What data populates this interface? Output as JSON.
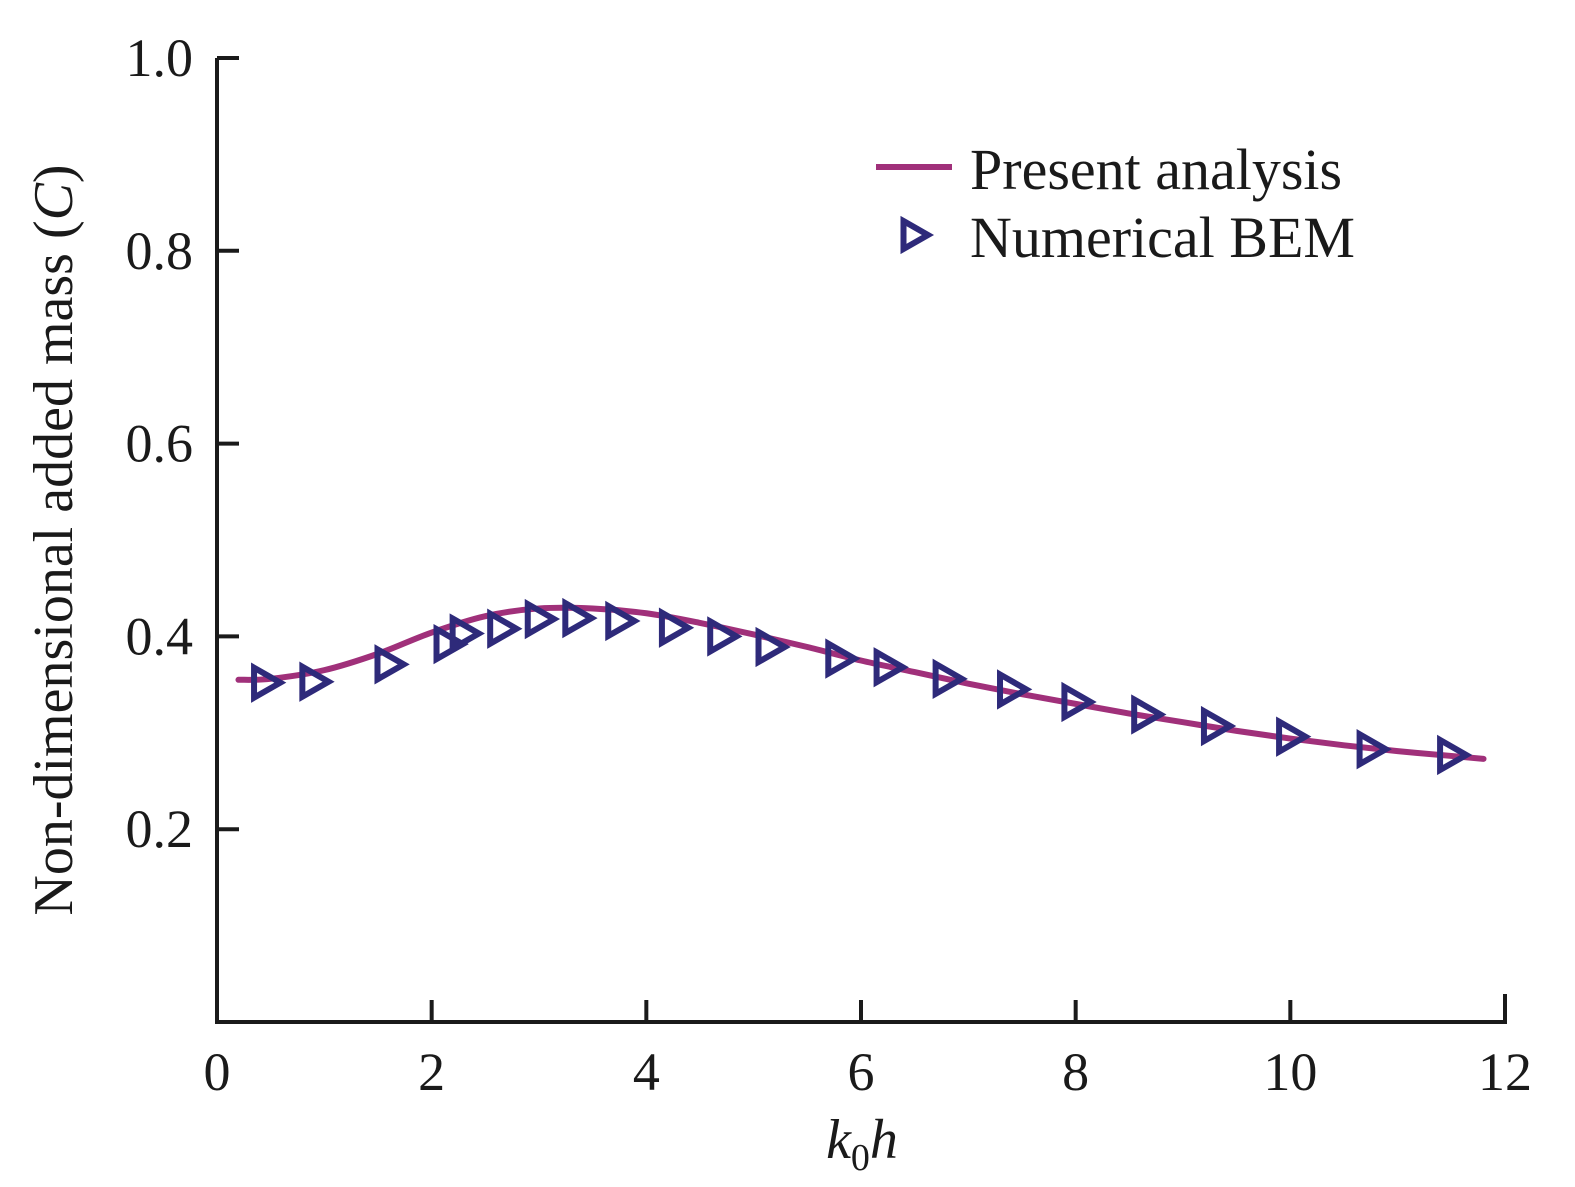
{
  "chart_data": {
    "type": "line",
    "xlabel": {
      "main": "k",
      "sub": "0",
      "tail": "h"
    },
    "ylabel": "Non-dimensional added mass (C)",
    "ylabel_parts": {
      "pre": "Non-dimensional added mass (",
      "var": "C",
      "post": ")"
    },
    "xlim": [
      0,
      12
    ],
    "ylim": [
      0,
      1.0
    ],
    "xticks": [
      0,
      2,
      4,
      6,
      8,
      10,
      12
    ],
    "xtick_labels": [
      "0",
      "2",
      "4",
      "6",
      "8",
      "10",
      "12"
    ],
    "yticks": [
      0.2,
      0.4,
      0.6,
      0.8,
      1.0
    ],
    "ytick_labels": [
      "0.2",
      "0.4",
      "0.6",
      "0.8",
      "1.0"
    ],
    "grid": false,
    "legend_position": "top-right",
    "series": [
      {
        "name": "Present analysis",
        "style": "line",
        "color": "#a0307a",
        "x": [
          0.2,
          0.5,
          1.0,
          1.5,
          2.0,
          2.5,
          3.0,
          3.5,
          4.0,
          4.5,
          5.0,
          5.5,
          6.0,
          6.5,
          7.0,
          7.5,
          8.0,
          8.5,
          9.0,
          9.5,
          10.0,
          10.5,
          11.0,
          11.5,
          11.8
        ],
        "y": [
          0.355,
          0.356,
          0.365,
          0.382,
          0.404,
          0.421,
          0.429,
          0.429,
          0.424,
          0.414,
          0.402,
          0.389,
          0.375,
          0.363,
          0.351,
          0.34,
          0.33,
          0.32,
          0.311,
          0.302,
          0.294,
          0.287,
          0.281,
          0.276,
          0.273
        ]
      },
      {
        "name": "Numerical BEM",
        "style": "marker",
        "marker": "triangle-right",
        "color": "#2e2a7a",
        "x": [
          0.45,
          0.9,
          1.6,
          2.15,
          2.3,
          2.65,
          3.0,
          3.35,
          3.75,
          4.25,
          4.7,
          5.15,
          5.8,
          6.25,
          6.8,
          7.4,
          8.0,
          8.65,
          9.3,
          10.0,
          10.75,
          11.5
        ],
        "y": [
          0.352,
          0.353,
          0.371,
          0.392,
          0.403,
          0.408,
          0.418,
          0.419,
          0.416,
          0.409,
          0.4,
          0.389,
          0.377,
          0.368,
          0.356,
          0.345,
          0.332,
          0.319,
          0.307,
          0.296,
          0.283,
          0.277
        ]
      }
    ]
  }
}
